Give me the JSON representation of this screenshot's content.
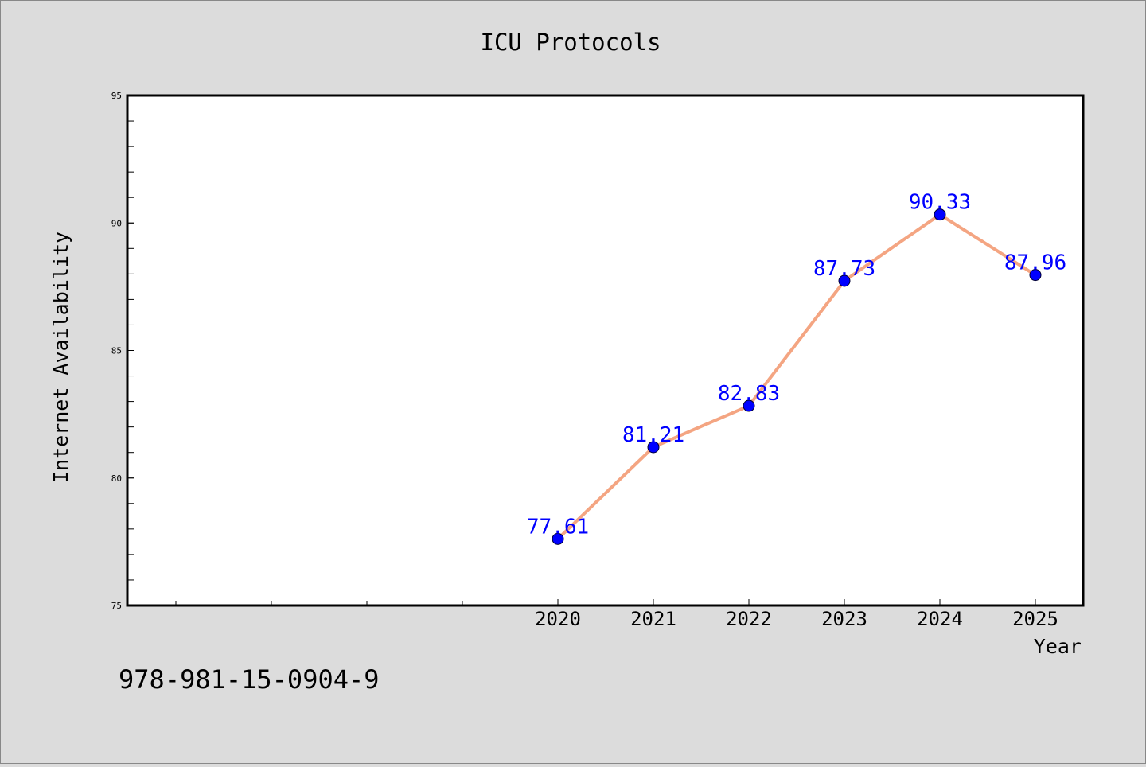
{
  "chart_data": {
    "type": "line",
    "title": "ICU Protocols",
    "xlabel": "Year",
    "ylabel": "Internet Availability",
    "x_categories": [
      "2020",
      "2021",
      "2022",
      "2023",
      "2024",
      "2025"
    ],
    "series": [
      {
        "values": [
          77.61,
          81.21,
          82.83,
          87.73,
          90.33,
          87.96
        ],
        "line_color": "#f4a582",
        "marker_color": "#0000ff"
      }
    ],
    "data_labels": [
      "77.61",
      "81.21",
      "82.83",
      "87.73",
      "90.33",
      "87.96"
    ],
    "label_color": "#0000ff",
    "ylim": [
      75,
      95
    ],
    "y_major_ticks": [
      "75",
      "80",
      "85",
      "90",
      "95"
    ],
    "grid": false,
    "background": "#dcdcdc",
    "plot_background": "#ffffff"
  },
  "footer": {
    "isbn": "978-981-15-0904-9"
  }
}
